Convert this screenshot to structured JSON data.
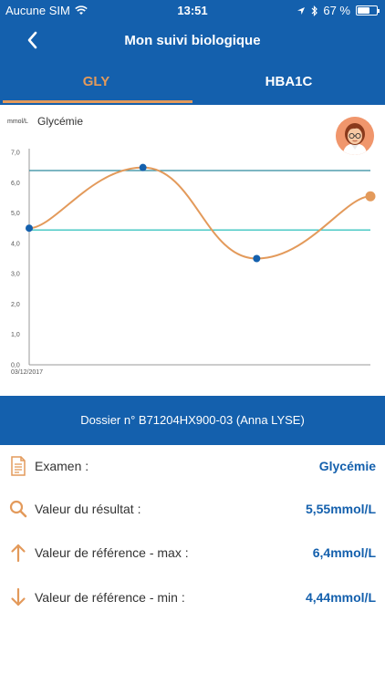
{
  "status_bar": {
    "carrier": "Aucune SIM",
    "time": "13:51",
    "battery": "67 %",
    "battery_level": 0.67
  },
  "nav": {
    "title": "Mon suivi biologique"
  },
  "tabs": [
    {
      "label": "GLY",
      "active": true
    },
    {
      "label": "HBA1C",
      "active": false
    }
  ],
  "colors": {
    "primary": "#1460ad",
    "accent": "#e39a5b",
    "ref_max": "#2f8a9e",
    "ref_min": "#3cc4c0"
  },
  "chart_data": {
    "type": "line",
    "unit": "mmol/L",
    "title": "Glycémie",
    "ylim": [
      0,
      7
    ],
    "y_ticks": [
      "7,0",
      "6,0",
      "5,0",
      "4,0",
      "3,0",
      "2,0",
      "1,0",
      "0,0"
    ],
    "x_label_first": "03/12/2017",
    "points": [
      4.5,
      6.5,
      3.5,
      5.55
    ],
    "ref_max": 6.4,
    "ref_min": 4.44,
    "grid": false
  },
  "dossier": {
    "label": "Dossier n° B71204HX900-03 (Anna LYSE)"
  },
  "details": [
    {
      "icon": "document-icon",
      "label": "Examen :",
      "value": "Glycémie"
    },
    {
      "icon": "search-icon",
      "label": "Valeur du résultat :",
      "value": "5,55mmol/L"
    },
    {
      "icon": "arrow-up-icon",
      "label": "Valeur de référence - max :",
      "value": "6,4mmol/L"
    },
    {
      "icon": "arrow-down-icon",
      "label": "Valeur de référence - min :",
      "value": "4,44mmol/L"
    }
  ]
}
